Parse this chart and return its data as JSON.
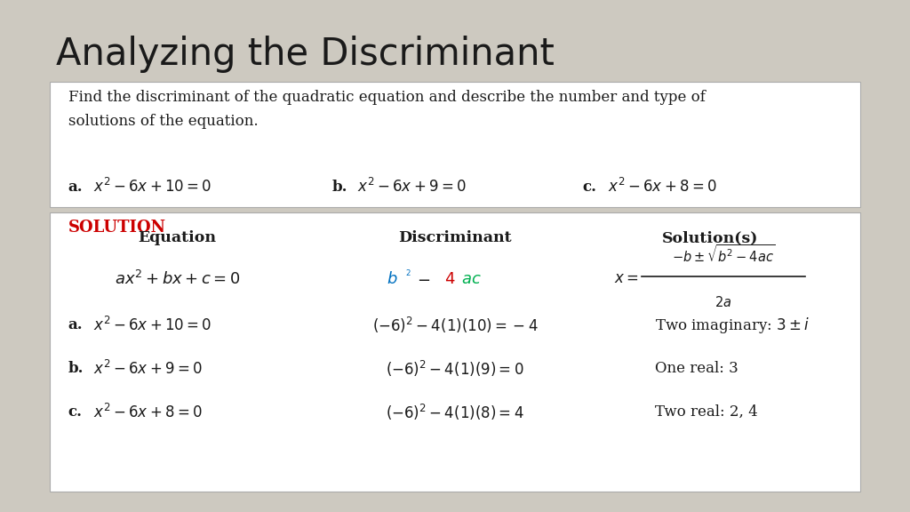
{
  "title": "Analyzing the Discriminant",
  "bg_color": "#cdc9c0",
  "solution_color": "#cc0000",
  "title_fontsize": 30,
  "body_fontsize": 13,
  "problem_text_line1": "Find the discriminant of the quadratic equation and describe the number and type of",
  "problem_text_line2": "solutions of the equation.",
  "col_headers": [
    "Equation",
    "Discriminant",
    "Solution(s)"
  ],
  "rows": [
    {
      "label": "a.",
      "eq": "$x^2 - 6x + 10 = 0$",
      "disc": "$(-6)^2 - 4(1)(10) = -4$",
      "sol": "Two imaginary: $3 \\pm i$"
    },
    {
      "label": "b.",
      "eq": "$x^2 - 6x + 9 = 0$",
      "disc": "$(-6)^2 - 4(1)(9) = 0$",
      "sol": "One real: 3"
    },
    {
      "label": "c.",
      "eq": "$x^2 - 6x + 8 = 0$",
      "disc": "$(-6)^2 - 4(1)(8) = 4$",
      "sol": "Two real: 2, 4"
    }
  ]
}
